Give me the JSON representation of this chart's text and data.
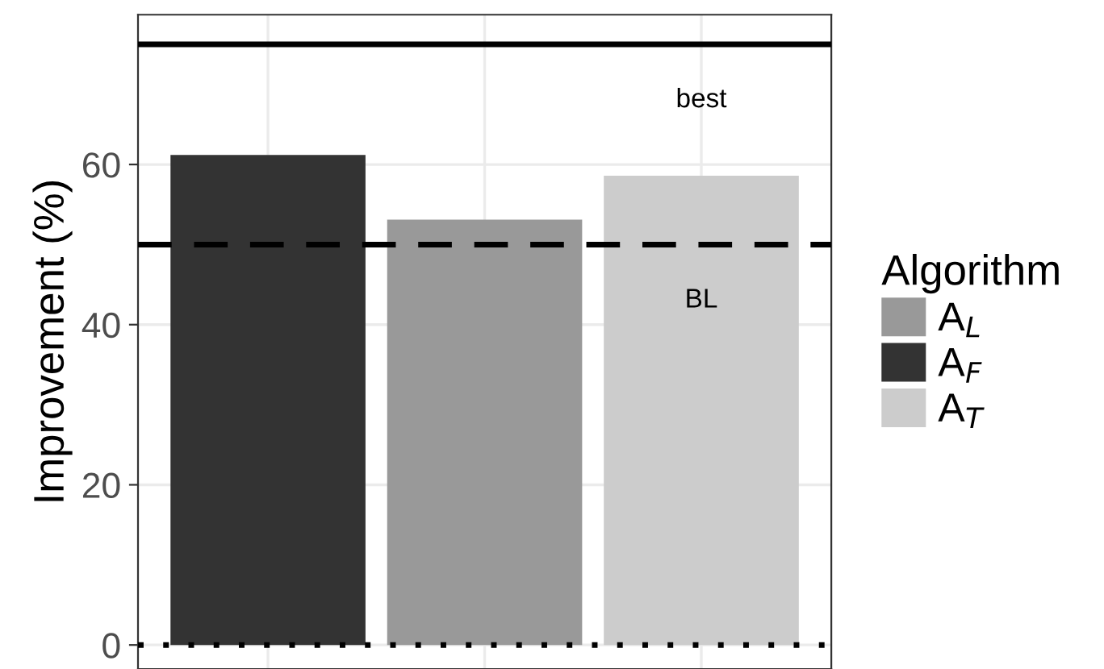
{
  "chart_data": {
    "type": "bar",
    "ylabel": "Improvement (%)",
    "legend_title": "Algorithm",
    "categories": [
      null,
      null,
      null
    ],
    "series": [
      {
        "name": "A$_{L}$",
        "color": "#999999",
        "values": [
          null,
          53.1,
          null
        ]
      },
      {
        "name": "A$_{F}$",
        "color": "#333333",
        "values": [
          61.2,
          null,
          null
        ]
      },
      {
        "name": "A$_{T}$",
        "color": "#cccccc",
        "values": [
          null,
          null,
          58.6
        ]
      }
    ],
    "ylim": [
      -3,
      78.7
    ],
    "yticks": [
      0,
      20,
      40,
      60
    ],
    "grid": true,
    "legend": "right",
    "tick_labels": "y",
    "ref_lines": [
      {
        "axis": "y",
        "value": 75,
        "label": "best",
        "line_style": "solid",
        "color": "#000000"
      },
      {
        "axis": "y",
        "value": 50,
        "label": "BL",
        "line_style": "dashed",
        "color": "#000000"
      },
      {
        "axis": "y",
        "value": 0,
        "line_style": "dotted",
        "color": "#000000"
      }
    ]
  }
}
